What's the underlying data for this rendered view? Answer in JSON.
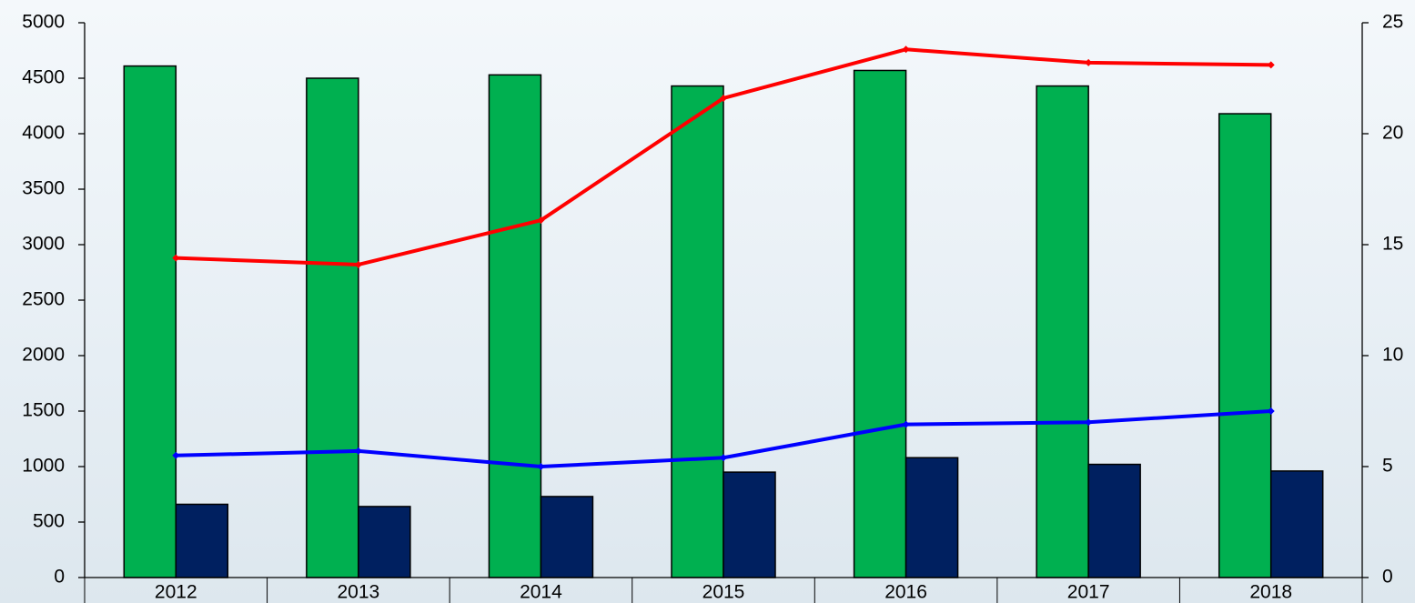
{
  "chart_data": {
    "type": "bar",
    "categories": [
      "2012",
      "2013",
      "2014",
      "2015",
      "2016",
      "2017",
      "2018"
    ],
    "series": [
      {
        "type": "bar",
        "color": "#00b050",
        "values": [
          4610,
          4500,
          4530,
          4430,
          4570,
          4430,
          4180
        ]
      },
      {
        "type": "bar",
        "color": "#002060",
        "values": [
          660,
          640,
          730,
          950,
          1080,
          1020,
          960
        ]
      },
      {
        "type": "line",
        "axis": "y2",
        "color": "#ff0000",
        "values": [
          14.4,
          14.1,
          16.1,
          21.6,
          23.8,
          23.2,
          23.1
        ]
      },
      {
        "type": "line",
        "axis": "y2",
        "color": "#0000ff",
        "values": [
          5.5,
          5.7,
          5.0,
          5.4,
          6.9,
          7.0,
          7.5
        ]
      }
    ],
    "ylim": [
      0,
      5000
    ],
    "yticks": [
      0,
      500,
      1000,
      1500,
      2000,
      2500,
      3000,
      3500,
      4000,
      4500,
      5000
    ],
    "y2lim": [
      0,
      25
    ],
    "y2ticks": [
      0,
      5,
      10,
      15,
      20,
      25
    ]
  }
}
